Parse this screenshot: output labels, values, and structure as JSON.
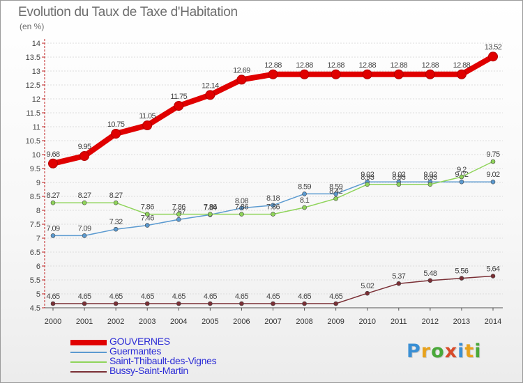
{
  "title": "Evolution du Taux de Taxe d'Habitation",
  "subtitle": "(en %)",
  "logo": {
    "letters": [
      "P",
      "r",
      "o",
      "x",
      "i",
      "t",
      "i"
    ],
    "colors": [
      "#3a8fd4",
      "#e8a21c",
      "#4aa83a",
      "#d84b2a",
      "#3a8fd4",
      "#e8a21c",
      "#4aa83a"
    ]
  },
  "chart_data": {
    "type": "line",
    "x": [
      2000,
      2001,
      2002,
      2003,
      2004,
      2005,
      2006,
      2007,
      2008,
      2009,
      2010,
      2011,
      2012,
      2013,
      2014
    ],
    "ylim": [
      4.5,
      14
    ],
    "yticks": [
      4.5,
      5,
      5.5,
      6,
      6.5,
      7,
      7.5,
      8,
      8.5,
      9,
      9.5,
      10,
      10.5,
      11,
      11.5,
      12,
      12.5,
      13,
      13.5,
      14
    ],
    "ytick_labels": [
      "4.5",
      "5",
      "5.5",
      "6",
      "6.5",
      "7",
      "7.5",
      "8",
      "8.5",
      "9",
      "9.5",
      "10",
      "10.5",
      "11",
      "11.5",
      "12",
      "12.5",
      "13",
      "13.5",
      "14"
    ],
    "grid": "horizontal",
    "legend_position": "bottom-left",
    "series": [
      {
        "name": "GOUVERNES",
        "color": "#e00000",
        "values": [
          9.68,
          9.95,
          10.75,
          11.05,
          11.75,
          12.14,
          12.69,
          12.88,
          12.88,
          12.88,
          12.88,
          12.88,
          12.88,
          12.88,
          13.52
        ],
        "labels": [
          "9.68",
          "9.95",
          "10.75",
          "11.05",
          "11.75",
          "12.14",
          "12.69",
          "12.88",
          "12.88",
          "12.88",
          "12.88",
          "12.88",
          "12.88",
          "12.88",
          "13.52"
        ]
      },
      {
        "name": "Guermantes",
        "color": "#5b9ad0",
        "values": [
          7.09,
          7.09,
          7.32,
          7.46,
          7.67,
          7.84,
          8.08,
          8.18,
          8.59,
          8.59,
          9.02,
          9.02,
          9.02,
          9.02,
          9.02
        ],
        "labels": [
          "7.09",
          "7.09",
          "7.32",
          "7.46",
          "7.67",
          "7.84",
          "8.08",
          "8.18",
          "8.59",
          "8.59",
          "9.02",
          "9.02",
          "9.02",
          "9.02",
          "9.02"
        ]
      },
      {
        "name": "Saint-Thibault-des-Vignes",
        "color": "#8fd45a",
        "values": [
          8.27,
          8.27,
          8.27,
          7.86,
          7.86,
          7.86,
          7.86,
          7.86,
          8.1,
          8.42,
          8.93,
          8.93,
          8.93,
          9.2,
          9.75
        ],
        "labels": [
          "8.27",
          "8.27",
          "8.27",
          "7.86",
          "7.86",
          "7.86",
          "7.86",
          "7.86",
          "8.1",
          "8.42",
          "8.93",
          "8.93",
          "8.93",
          "9.2",
          "9.75"
        ]
      },
      {
        "name": "Bussy-Saint-Martin",
        "color": "#7a2f35",
        "values": [
          4.65,
          4.65,
          4.65,
          4.65,
          4.65,
          4.65,
          4.65,
          4.65,
          4.65,
          4.65,
          5.02,
          5.37,
          5.48,
          5.56,
          5.64
        ],
        "labels": [
          "4.65",
          "4.65",
          "4.65",
          "4.65",
          "4.65",
          "4.65",
          "4.65",
          "4.65",
          "4.65",
          "4.65",
          "5.02",
          "5.37",
          "5.48",
          "5.56",
          "5.64"
        ]
      }
    ]
  }
}
